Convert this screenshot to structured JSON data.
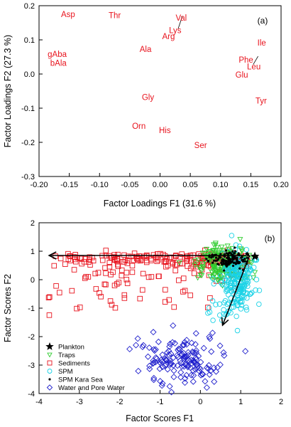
{
  "colors": {
    "amino_label": "#e8141e",
    "plankton": "#000000",
    "traps": "#2ecc2e",
    "sediments": "#e8141e",
    "spm": "#19d2e6",
    "spm_kara_sea": "#000000",
    "water_pore": "#1e1ecc",
    "arrow": "#000000"
  },
  "chart_data": [
    {
      "type": "scatter",
      "panel_label": "(a)",
      "xlabel": "Factor Loadings F1 (31.6 %)",
      "ylabel": "Factor Loadings F2 (27.3 %)",
      "xlim": [
        -0.2,
        0.2
      ],
      "ylim": [
        -0.3,
        0.2
      ],
      "x_ticks": [
        "-0.20",
        "-0.15",
        "-0.10",
        "-0.05",
        "0.00",
        "0.05",
        "0.10",
        "0.15",
        "0.20"
      ],
      "y_ticks": [
        "-0.3",
        "-0.2",
        "-0.1",
        "0.0",
        "0.1",
        "0.2"
      ],
      "grid": false,
      "points": [
        {
          "label": "Asp",
          "x": -0.152,
          "y": 0.175
        },
        {
          "label": "Thr",
          "x": -0.075,
          "y": 0.172
        },
        {
          "label": "Val",
          "x": 0.035,
          "y": 0.165
        },
        {
          "label": "Lys",
          "x": 0.025,
          "y": 0.128
        },
        {
          "label": "Arg",
          "x": 0.014,
          "y": 0.11
        },
        {
          "label": "Ala",
          "x": -0.024,
          "y": 0.073
        },
        {
          "label": "gAba",
          "x": -0.17,
          "y": 0.058
        },
        {
          "label": "bAla",
          "x": -0.168,
          "y": 0.032
        },
        {
          "label": "Ile",
          "x": 0.168,
          "y": 0.092
        },
        {
          "label": "Phe",
          "x": 0.142,
          "y": 0.042
        },
        {
          "label": "Leu",
          "x": 0.155,
          "y": 0.022
        },
        {
          "label": "Glu",
          "x": 0.135,
          "y": -0.002
        },
        {
          "label": "Gly",
          "x": -0.02,
          "y": -0.068
        },
        {
          "label": "Tyr",
          "x": 0.167,
          "y": -0.078
        },
        {
          "label": "Orn",
          "x": -0.035,
          "y": -0.152
        },
        {
          "label": "His",
          "x": 0.008,
          "y": -0.165
        },
        {
          "label": "Ser",
          "x": 0.067,
          "y": -0.208
        }
      ],
      "leader_lines": [
        {
          "from_x": 0.03,
          "from_y": 0.133,
          "to_x": 0.037,
          "to_y": 0.17
        },
        {
          "from_x": 0.154,
          "from_y": 0.028,
          "to_x": 0.162,
          "to_y": 0.052
        }
      ]
    },
    {
      "type": "scatter",
      "panel_label": "(b)",
      "xlabel": "Factor Scores F1",
      "ylabel": "Factor Scores F2",
      "xlim": [
        -4,
        2
      ],
      "ylim": [
        -4,
        2
      ],
      "x_ticks": [
        "-4",
        "-3",
        "-2",
        "-1",
        "0",
        "1",
        "2"
      ],
      "y_ticks": [
        "-4",
        "-3",
        "-2",
        "-1",
        "0",
        "1",
        "2"
      ],
      "grid": false,
      "legend_position": "bottom-left",
      "series": [
        {
          "name": "Plankton",
          "marker": "star",
          "color_key": "plankton"
        },
        {
          "name": "Traps",
          "marker": "triangle-down",
          "color_key": "traps"
        },
        {
          "name": "Sediments",
          "marker": "square",
          "color_key": "sediments"
        },
        {
          "name": "SPM",
          "marker": "circle",
          "color_key": "spm"
        },
        {
          "name": "SPM Kara Sea",
          "marker": "dot",
          "color_key": "spm_kara_sea"
        },
        {
          "name": "Water and Pore Water",
          "marker": "diamond",
          "color_key": "water_pore"
        }
      ],
      "vectors": [
        {
          "from_x": 1.22,
          "from_y": 0.85,
          "to_x": -3.75,
          "to_y": 0.85
        },
        {
          "from_x": 1.22,
          "from_y": 0.85,
          "to_x": 0.55,
          "to_y": -1.6
        }
      ]
    }
  ]
}
